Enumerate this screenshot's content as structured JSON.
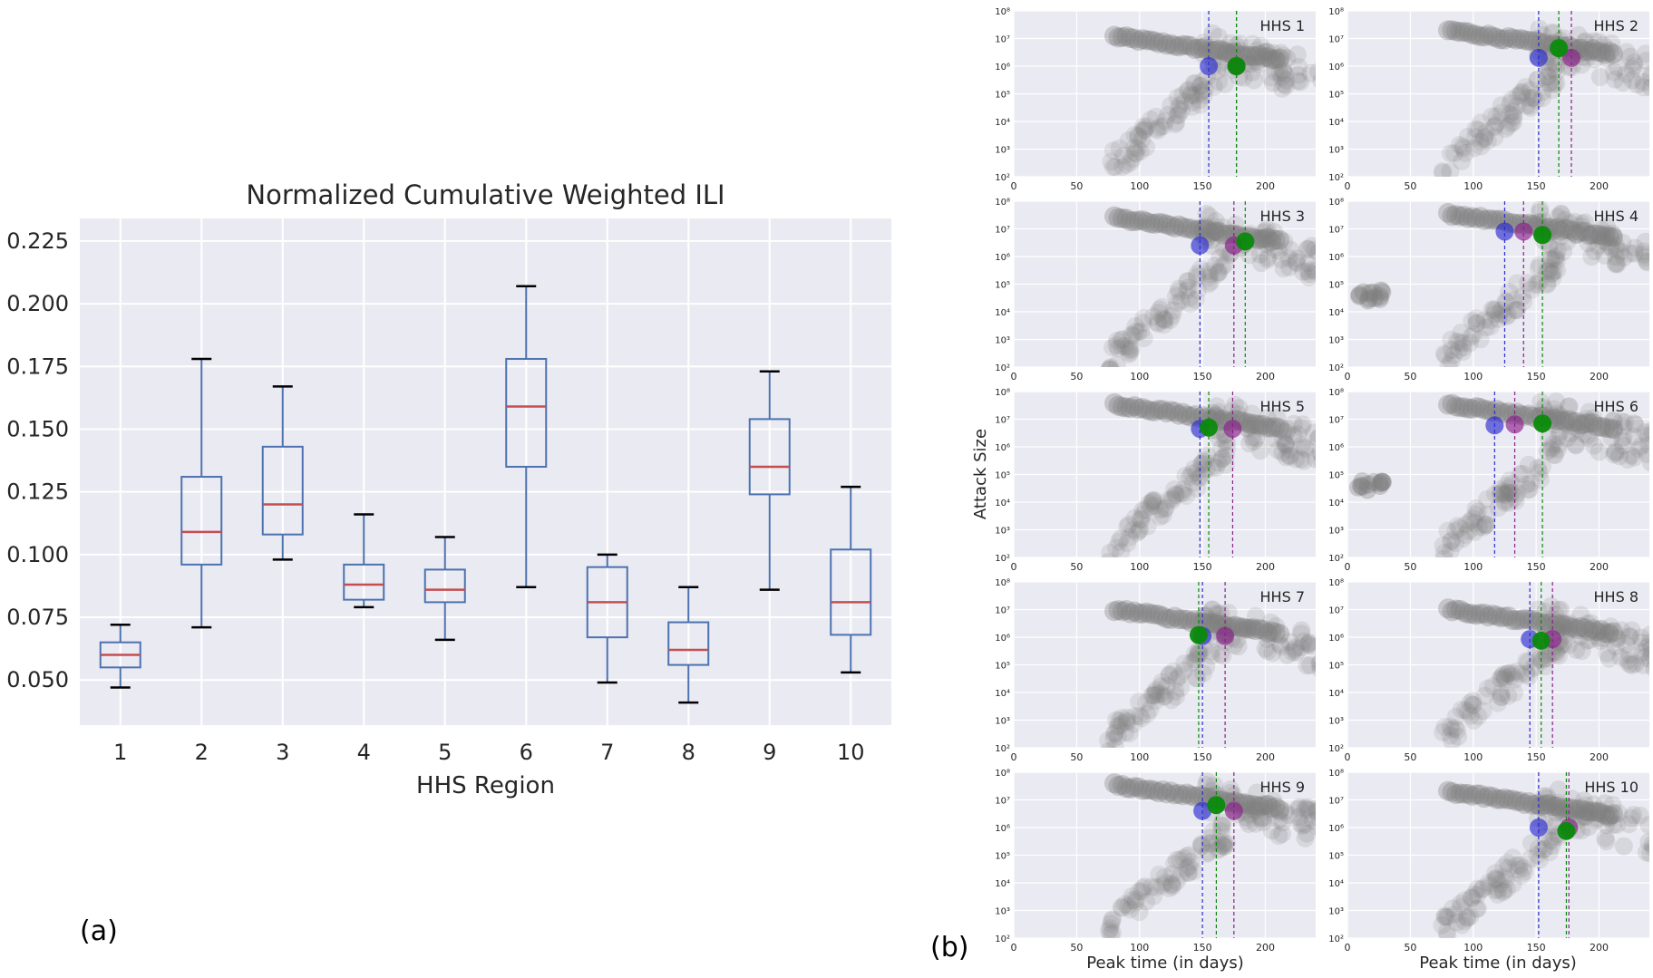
{
  "panel_labels": {
    "a": "(a)",
    "b": "(b)"
  },
  "chart_data": [
    {
      "type": "box",
      "title": "Normalized Cumulative Weighted ILI",
      "xlabel": "HHS Region",
      "ylabel": "",
      "categories": [
        "1",
        "2",
        "3",
        "4",
        "5",
        "6",
        "7",
        "8",
        "9",
        "10"
      ],
      "ylim": [
        0.032,
        0.234
      ],
      "yticks": [
        0.05,
        0.075,
        0.1,
        0.125,
        0.15,
        0.175,
        0.2,
        0.225
      ],
      "ytick_labels": [
        "0.050",
        "0.075",
        "0.100",
        "0.125",
        "0.150",
        "0.175",
        "0.200",
        "0.225"
      ],
      "boxes": [
        {
          "whislo": 0.047,
          "q1": 0.055,
          "med": 0.06,
          "q3": 0.065,
          "whishi": 0.072
        },
        {
          "whislo": 0.071,
          "q1": 0.096,
          "med": 0.109,
          "q3": 0.131,
          "whishi": 0.178
        },
        {
          "whislo": 0.098,
          "q1": 0.108,
          "med": 0.12,
          "q3": 0.143,
          "whishi": 0.167
        },
        {
          "whislo": 0.079,
          "q1": 0.082,
          "med": 0.088,
          "q3": 0.096,
          "whishi": 0.116
        },
        {
          "whislo": 0.066,
          "q1": 0.081,
          "med": 0.086,
          "q3": 0.094,
          "whishi": 0.107
        },
        {
          "whislo": 0.087,
          "q1": 0.135,
          "med": 0.159,
          "q3": 0.178,
          "whishi": 0.207
        },
        {
          "whislo": 0.049,
          "q1": 0.067,
          "med": 0.081,
          "q3": 0.095,
          "whishi": 0.1
        },
        {
          "whislo": 0.041,
          "q1": 0.056,
          "med": 0.062,
          "q3": 0.073,
          "whishi": 0.087
        },
        {
          "whislo": 0.086,
          "q1": 0.124,
          "med": 0.135,
          "q3": 0.154,
          "whishi": 0.173
        },
        {
          "whislo": 0.053,
          "q1": 0.068,
          "med": 0.081,
          "q3": 0.102,
          "whishi": 0.127
        }
      ],
      "colors": {
        "box": "#4c72b0",
        "median": "#c44e52",
        "whisker_cap": "#000000",
        "background": "#eaeaf2",
        "grid": "#ffffff"
      },
      "grid": true
    },
    {
      "type": "scatter",
      "ylabel": "Attack Size",
      "xlabel": "Peak time (in days)",
      "xlim": [
        0,
        240
      ],
      "xticks": [
        0,
        50,
        100,
        150,
        200
      ],
      "ylim_log10": [
        2,
        8
      ],
      "ytick_labels": [
        "10²",
        "10³",
        "10⁴",
        "10⁵",
        "10⁶",
        "10⁷",
        "10⁸"
      ],
      "yscale": "log",
      "grid": true,
      "colors": {
        "blue": "#2b2bd0",
        "purple": "#8b1f8b",
        "green": "#0a8a0a",
        "cloud": "#7f7f7f",
        "background": "#eaeaf2"
      },
      "panels": [
        {
          "title": "HHS 1",
          "blue_x": 155,
          "blue_y": 1000000,
          "purple_x": 177,
          "purple_y": 1000000,
          "green_x": 177,
          "green_y": 1000000,
          "cloud_top": 12000000,
          "extra_cloud": false
        },
        {
          "title": "HHS 2",
          "blue_x": 152,
          "blue_y": 2000000,
          "purple_x": 178,
          "purple_y": 2000000,
          "green_x": 168,
          "green_y": 4500000,
          "cloud_top": 20000000,
          "extra_cloud": false
        },
        {
          "title": "HHS 3",
          "blue_x": 148,
          "blue_y": 2500000,
          "purple_x": 175,
          "purple_y": 2500000,
          "green_x": 184,
          "green_y": 3500000,
          "cloud_top": 25000000,
          "extra_cloud": false
        },
        {
          "title": "HHS 4",
          "blue_x": 125,
          "blue_y": 8000000,
          "purple_x": 140,
          "purple_y": 8000000,
          "green_x": 155,
          "green_y": 6000000,
          "cloud_top": 35000000,
          "extra_cloud": true
        },
        {
          "title": "HHS 5",
          "blue_x": 148,
          "blue_y": 4500000,
          "purple_x": 174,
          "purple_y": 4500000,
          "green_x": 155,
          "green_y": 5000000,
          "cloud_top": 35000000,
          "extra_cloud": false
        },
        {
          "title": "HHS 6",
          "blue_x": 117,
          "blue_y": 6000000,
          "purple_x": 133,
          "purple_y": 6500000,
          "green_x": 155,
          "green_y": 7000000,
          "cloud_top": 35000000,
          "extra_cloud": true
        },
        {
          "title": "HHS 7",
          "blue_x": 150,
          "blue_y": 1100000,
          "purple_x": 168,
          "purple_y": 1100000,
          "green_x": 147,
          "green_y": 1200000,
          "cloud_top": 10000000,
          "extra_cloud": false
        },
        {
          "title": "HHS 8",
          "blue_x": 145,
          "blue_y": 850000,
          "purple_x": 163,
          "purple_y": 850000,
          "green_x": 154,
          "green_y": 750000,
          "cloud_top": 10000000,
          "extra_cloud": false
        },
        {
          "title": "HHS 9",
          "blue_x": 150,
          "blue_y": 4000000,
          "purple_x": 175,
          "purple_y": 4000000,
          "green_x": 161,
          "green_y": 6500000,
          "cloud_top": 35000000,
          "extra_cloud": false
        },
        {
          "title": "HHS 10",
          "blue_x": 152,
          "blue_y": 1000000,
          "purple_x": 176,
          "purple_y": 1000000,
          "green_x": 174,
          "green_y": 750000,
          "cloud_top": 20000000,
          "extra_cloud": false
        }
      ]
    }
  ]
}
